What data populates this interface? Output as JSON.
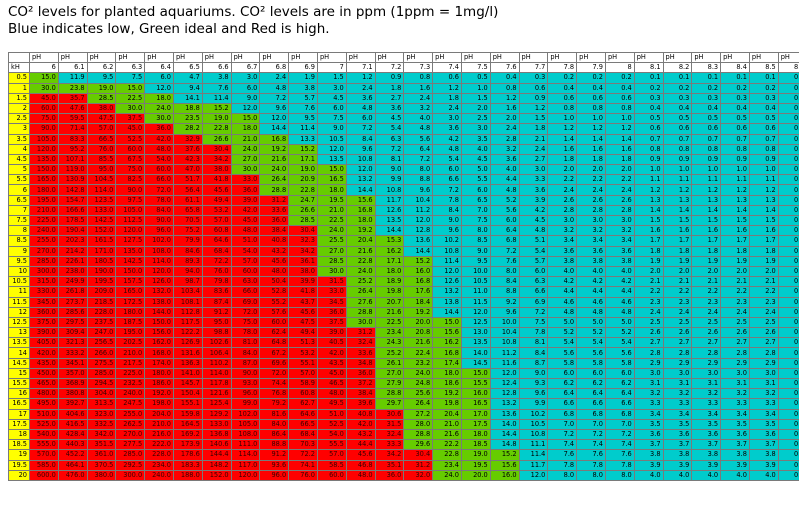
{
  "title_line1": "CO² levels for planted aquariums. CO² levels are in ppm (1ppm = 1mg/l)",
  "title_line2": "Blue indicates low, Green ideal and Red is high.",
  "colors": {
    "high": "#ff0000",
    "ideal": "#66cc00",
    "low": "#00cccc",
    "kh": "#ffff00"
  },
  "chart_data": {
    "type": "table",
    "row_label": "kH",
    "column_header": "pH",
    "ph": [
      "6",
      "6.1",
      "6.2",
      "6.3",
      "6.4",
      "6.5",
      "6.6",
      "6.7",
      "6.8",
      "6.9",
      "7",
      "7.1",
      "7.2",
      "7.3",
      "7.4",
      "7.5",
      "7.6",
      "7.7",
      "7.8",
      "7.9",
      "8",
      "8.1",
      "8.2",
      "8.3",
      "8.4",
      "8.5",
      "8.6"
    ],
    "kh": [
      "0.5",
      "1",
      "1.5",
      "2",
      "2.5",
      "3",
      "3.5",
      "4",
      "4.5",
      "5",
      "5.5",
      "6",
      "6.5",
      "7",
      "7.5",
      "8",
      "8.5",
      "9",
      "9.5",
      "10",
      "10.5",
      "11",
      "11.5",
      "12",
      "12.5",
      "13",
      "13.5",
      "14",
      "14.5",
      "15",
      "15.5",
      "16",
      "16.5",
      "17",
      "17.5",
      "18",
      "18.5",
      "19",
      "19.5",
      "20"
    ],
    "base": [
      15,
      11.9,
      9.5,
      7.5,
      6,
      4.7,
      3.8,
      3,
      2.4,
      1.9,
      1.5,
      1.2,
      0.9,
      0.8,
      0.6,
      0.5,
      0.4,
      0.3,
      0.2,
      0.2,
      0.2,
      0.1,
      0.1,
      0.1,
      0.1,
      0.1,
      0.0
    ],
    "color_rule": {
      "red_min": 30.05,
      "green_min": 14.95
    }
  }
}
